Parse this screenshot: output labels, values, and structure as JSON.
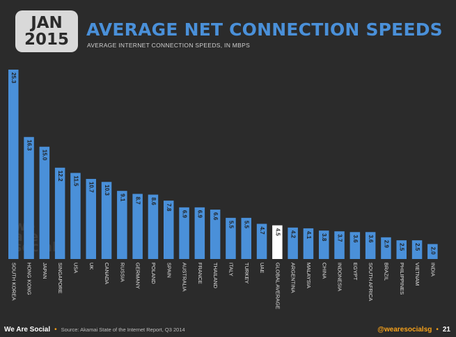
{
  "header": {
    "month": "JAN",
    "year": "2015",
    "title": "AVERAGE NET CONNECTION SPEEDS",
    "subtitle": "AVERAGE INTERNET CONNECTION SPEEDS, IN MBPS"
  },
  "logo": {
    "line1": "we",
    "line2": "are",
    "line3": "social"
  },
  "footer": {
    "brand": "We Are Social",
    "separator": "•",
    "source": "Source: Akamai State of the Internet Report, Q3 2014",
    "handle": "@wearesocialsg",
    "page_separator": "•",
    "page_number": "21"
  },
  "colors": {
    "background": "#2b2b2b",
    "bar": "#4a90d9",
    "highlight_bar": "#ffffff",
    "title": "#4a90d9",
    "accent": "#f7a21b"
  },
  "chart_data": {
    "type": "bar",
    "title": "AVERAGE NET CONNECTION SPEEDS",
    "subtitle": "AVERAGE INTERNET CONNECTION SPEEDS, IN MBPS",
    "categories": [
      "SOUTH KOREA",
      "HONG KONG",
      "JAPAN",
      "SINGAPORE",
      "USA",
      "UK",
      "CANADA",
      "RUSSIA",
      "GERMANY",
      "POLAND",
      "SPAIN",
      "AUSTRALIA",
      "FRANCE",
      "THAILAND",
      "ITALY",
      "TURKEY",
      "UAE",
      "GLOBAL AVERAGE",
      "ARGENTINA",
      "MALAYSIA",
      "CHINA",
      "INDONESIA",
      "EGYPT",
      "SOUTH AFRICA",
      "BRAZIL",
      "PHILIPPINES",
      "VIETNAM",
      "INDIA"
    ],
    "values": [
      25.3,
      16.3,
      15.0,
      12.2,
      11.5,
      10.7,
      10.3,
      9.1,
      8.7,
      8.6,
      7.8,
      6.9,
      6.9,
      6.6,
      5.5,
      5.5,
      4.7,
      4.5,
      4.2,
      4.1,
      3.8,
      3.7,
      3.6,
      3.6,
      2.9,
      2.5,
      2.5,
      2.0
    ],
    "value_labels": [
      "25.3",
      "16.3",
      "15.0",
      "12.2",
      "11.5",
      "10.7",
      "10.3",
      "9.1",
      "8.7",
      "8.6",
      "7.8",
      "6.9",
      "6.9",
      "6.6",
      "5.5",
      "5.5",
      "4.7",
      "4.5",
      "4.2",
      "4.1",
      "3.8",
      "3.7",
      "3.6",
      "3.6",
      "2.9",
      "2.5",
      "2.5",
      "2.0"
    ],
    "highlight": "GLOBAL AVERAGE",
    "ylim": [
      0,
      25.3
    ],
    "grid": false,
    "legend": "none"
  }
}
